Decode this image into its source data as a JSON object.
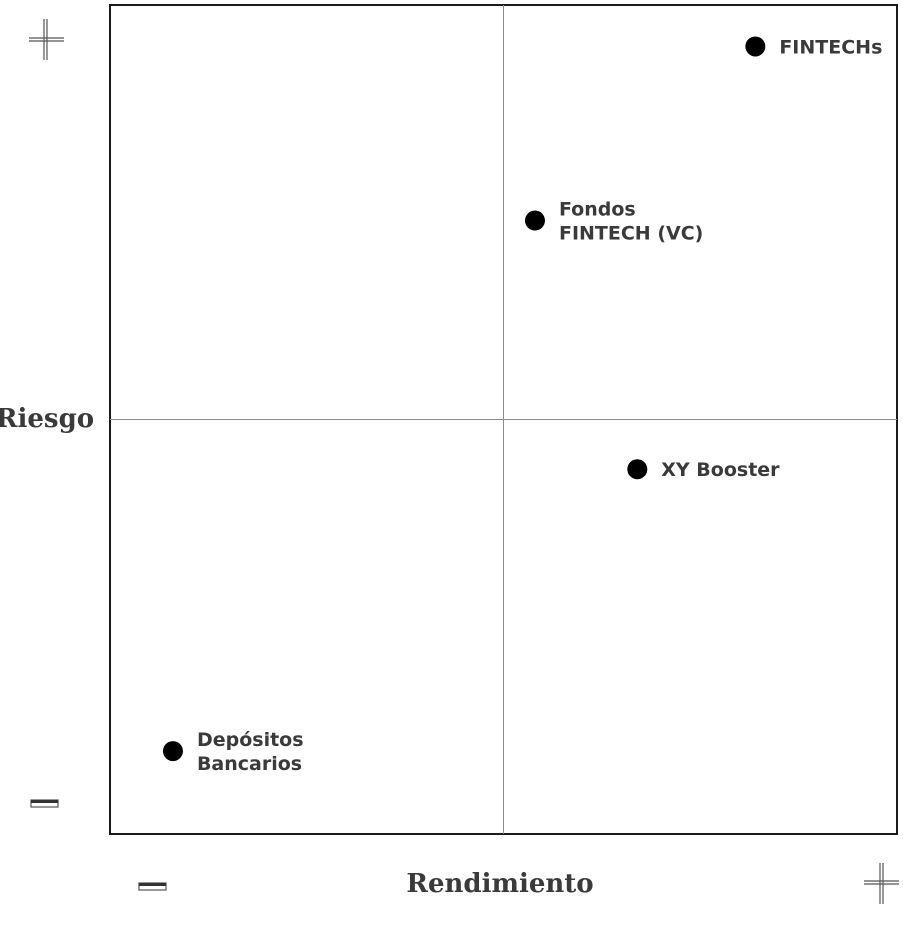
{
  "chart_data": {
    "type": "scatter",
    "title": "",
    "xlabel": "Rendimiento",
    "ylabel": "Riesgo",
    "x_low_marker": "−",
    "x_high_marker": "+",
    "y_low_marker": "−",
    "y_high_marker": "+",
    "xlim": [
      0,
      100
    ],
    "ylim": [
      0,
      100
    ],
    "quadrant_split": {
      "x": 50,
      "y": 50
    },
    "grid": false,
    "points": [
      {
        "name": "FINTECHs",
        "label_lines": [
          "FINTECHs"
        ],
        "x": 82,
        "y": 95
      },
      {
        "name": "Fondos FINTECH (VC)",
        "label_lines": [
          "Fondos",
          "FINTECH (VC)"
        ],
        "x": 54,
        "y": 74
      },
      {
        "name": "XY Booster",
        "label_lines": [
          "XY Booster"
        ],
        "x": 67,
        "y": 44
      },
      {
        "name": "Depósitos Bancarios",
        "label_lines": [
          "Depósitos",
          "Bancarios"
        ],
        "x": 8,
        "y": 10
      }
    ]
  },
  "colors": {
    "frame": "#1a1a1a",
    "divider": "#8a8a8a",
    "point": "#000000",
    "text": "#3a3a3a"
  }
}
